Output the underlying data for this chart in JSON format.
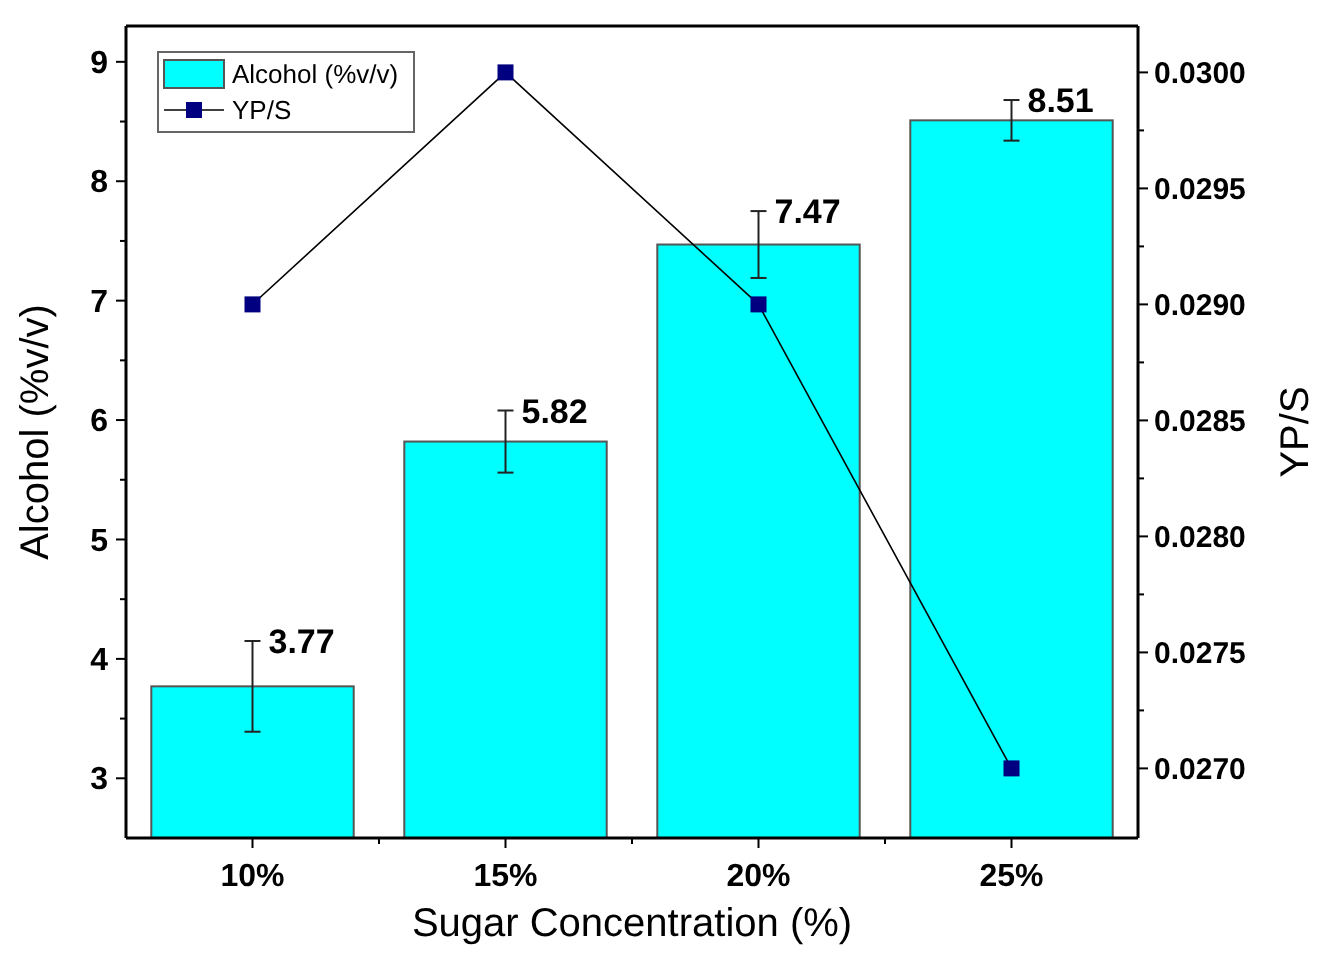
{
  "chart_data": {
    "type": "bar",
    "xlabel": "Sugar Concentration (%)",
    "ylabel": "Alcohol (%v/v)",
    "y2label": "YP/S",
    "categories": [
      "10%",
      "15%",
      "20%",
      "25%"
    ],
    "series": [
      {
        "name": "Alcohol (%v/v)",
        "color": "#00ffff",
        "values": [
          3.77,
          5.82,
          7.47,
          8.51
        ],
        "errors": [
          0.38,
          0.26,
          0.28,
          0.17
        ],
        "value_labels": [
          "3.77",
          "5.82",
          "7.47",
          "8.51"
        ]
      },
      {
        "name": "YP/S",
        "type": "line",
        "axis": "y2",
        "color": "#000080",
        "values": [
          0.029,
          0.03,
          0.029,
          0.027
        ]
      }
    ],
    "ylim": [
      2.5,
      9.3
    ],
    "yticks": [
      3,
      {
        "value": 3.5,
        "label": null
      },
      4,
      {
        "value": 4.5,
        "label": null
      },
      5,
      {
        "value": 5.5,
        "label": null
      },
      6,
      {
        "value": 6.5,
        "label": null
      },
      7,
      {
        "value": 7.5,
        "label": null
      },
      8,
      {
        "value": 8.5,
        "label": null
      },
      9
    ],
    "y2lim": [
      0.0267,
      0.0302
    ],
    "y2ticks": [
      {
        "value": 0.027,
        "label": "0.0270"
      },
      {
        "value": 0.02725,
        "label": null
      },
      {
        "value": 0.0275,
        "label": "0.0275"
      },
      {
        "value": 0.02775,
        "label": null
      },
      {
        "value": 0.028,
        "label": "0.0280"
      },
      {
        "value": 0.02825,
        "label": null
      },
      {
        "value": 0.0285,
        "label": "0.0285"
      },
      {
        "value": 0.02875,
        "label": null
      },
      {
        "value": 0.029,
        "label": "0.0290"
      },
      {
        "value": 0.02925,
        "label": null
      },
      {
        "value": 0.0295,
        "label": "0.0295"
      },
      {
        "value": 0.02975,
        "label": null
      },
      {
        "value": 0.03,
        "label": "0.0300"
      }
    ],
    "marker": "square",
    "line_style": "solid",
    "legend": "top left",
    "grid": false
  }
}
